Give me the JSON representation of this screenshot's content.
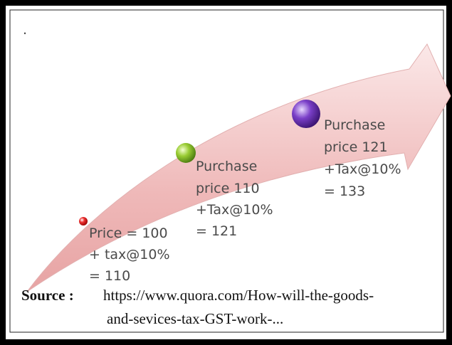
{
  "dot": ".",
  "stages": [
    {
      "lines": [
        "Price = 100",
        "+ tax@10%",
        "= 110"
      ]
    },
    {
      "lines": [
        "Purchase",
        "price 110",
        "+Tax@10%",
        "= 121"
      ]
    },
    {
      "lines": [
        "Purchase",
        "price 121",
        "+Tax@10%",
        "= 133"
      ]
    }
  ],
  "source": {
    "label": "Source :",
    "lines": [
      "https://www.quora.com/How-will-the-goods-",
      "and-sevices-tax-GST-work-..."
    ]
  }
}
